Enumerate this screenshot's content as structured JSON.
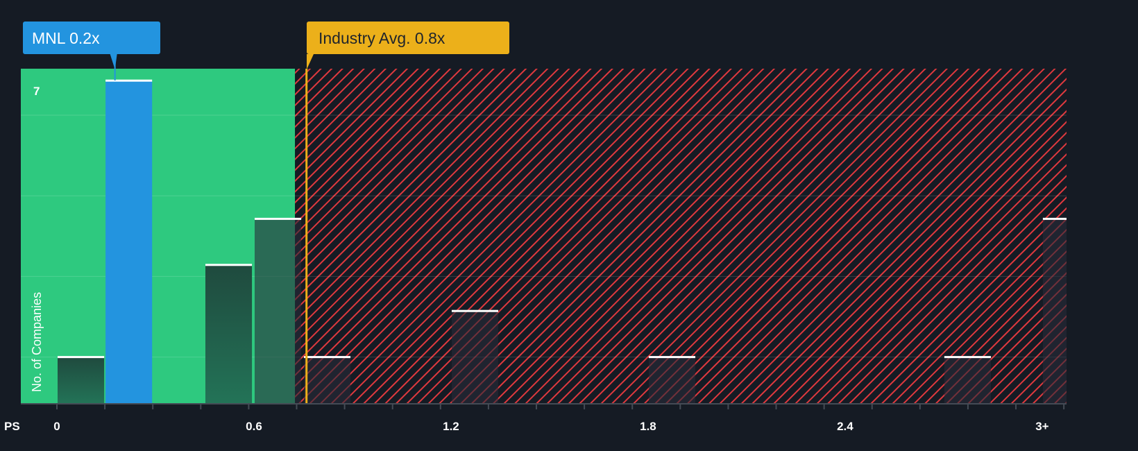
{
  "colors": {
    "background": "#151b24",
    "undervalued_zone": "#2ec97f",
    "overvalued_hatch": "#e0393e",
    "company": "#2394df",
    "industry": "#ecb01a",
    "bar_dark": "#215a49",
    "bar_hatched": "#1e232d"
  },
  "chart_data": {
    "type": "bar",
    "title": "",
    "xlabel": "PS",
    "ylabel": "No. of Companies",
    "xlim": [
      0,
      3.07
    ],
    "ylim": [
      0,
      7
    ],
    "x_ticks": [
      {
        "value": 0,
        "label": "0"
      },
      {
        "value": 0.6,
        "label": "0.6"
      },
      {
        "value": 1.2,
        "label": "1.2"
      },
      {
        "value": 1.8,
        "label": "1.8"
      },
      {
        "value": 2.4,
        "label": "2.4"
      },
      {
        "value": 3.0,
        "label": "3+"
      }
    ],
    "y_ticks": [
      {
        "value": 7,
        "label": "7"
      }
    ],
    "bin_width": 0.146,
    "bins": [
      {
        "start": 0.0,
        "value": 1
      },
      {
        "start": 0.146,
        "value": 7,
        "highlight": true
      },
      {
        "start": 0.45,
        "value": 3
      },
      {
        "start": 0.6,
        "value": 4
      },
      {
        "start": 0.75,
        "value": 1
      },
      {
        "start": 1.2,
        "value": 2
      },
      {
        "start": 1.8,
        "value": 1
      },
      {
        "start": 2.7,
        "value": 1
      },
      {
        "start": 3.0,
        "value": 4
      }
    ],
    "company": {
      "label": "MNL 0.2x",
      "value": 0.2
    },
    "industry": {
      "label": "Industry Avg. 0.8x",
      "value": 0.76
    },
    "fair_zone_end": 0.725
  }
}
